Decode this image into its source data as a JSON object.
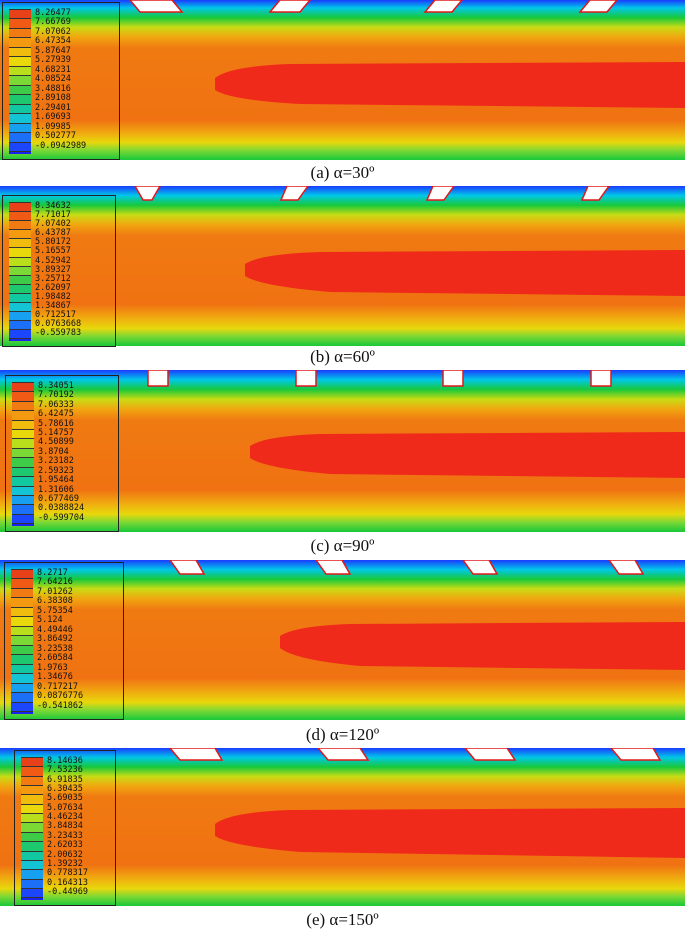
{
  "colors": {
    "blue": "#1a3cff",
    "cyan": "#00c8e8",
    "green": "#18c83a",
    "yellow": "#f2e20a",
    "orange": "#f07a12",
    "red": "#e8281a",
    "tab_border": "#e01818"
  },
  "legend_colors": [
    "#e84018",
    "#f05a14",
    "#f27a12",
    "#f39a10",
    "#f0bc0e",
    "#e8d80c",
    "#b8de1c",
    "#7cd834",
    "#3ecc48",
    "#1ec86e",
    "#12c8a0",
    "#14c4d4",
    "#18a0f0",
    "#1c70f8",
    "#1c46fc",
    "#1a22f0"
  ],
  "panels": [
    {
      "id": "a",
      "caption": "(a)  α=30º",
      "legend": [
        "8.26477",
        "7.66769",
        "7.07062",
        "6.47354",
        "5.87647",
        "5.27939",
        "4.68231",
        "4.08524",
        "3.48816",
        "2.89108",
        "2.29401",
        "1.69693",
        "1.09985",
        "0.502777",
        "-0.0942989"
      ]
    },
    {
      "id": "b",
      "caption": "(b)  α=60º",
      "legend": [
        "8.34632",
        "7.71017",
        "7.07402",
        "6.43787",
        "5.80172",
        "5.16557",
        "4.52942",
        "3.89327",
        "3.25712",
        "2.62097",
        "1.98482",
        "1.34867",
        "0.712517",
        "0.0763668",
        "-0.559783"
      ]
    },
    {
      "id": "c",
      "caption": "(c)  α=90º",
      "legend": [
        "8.34051",
        "7.70192",
        "7.06333",
        "6.42475",
        "5.78616",
        "5.14757",
        "4.50899",
        "3.8704",
        "3.23182",
        "2.59323",
        "1.95464",
        "1.31606",
        "0.677469",
        "0.0388824",
        "-0.599704"
      ]
    },
    {
      "id": "d",
      "caption": "(d)  α=120º",
      "legend": [
        "8.2717",
        "7.64216",
        "7.01262",
        "6.38308",
        "5.75354",
        "5.124",
        "4.49446",
        "3.86492",
        "3.23538",
        "2.60584",
        "1.9763",
        "1.34676",
        "0.717217",
        "0.0876776",
        "-0.541862"
      ]
    },
    {
      "id": "e",
      "caption": "(e)  α=150º",
      "legend": [
        "8.14636",
        "7.53236",
        "6.91835",
        "6.30435",
        "5.69035",
        "5.07634",
        "4.46234",
        "3.84834",
        "3.23433",
        "2.62033",
        "2.00632",
        "1.39232",
        "0.778317",
        "0.164313",
        "-0.44969"
      ]
    }
  ]
}
